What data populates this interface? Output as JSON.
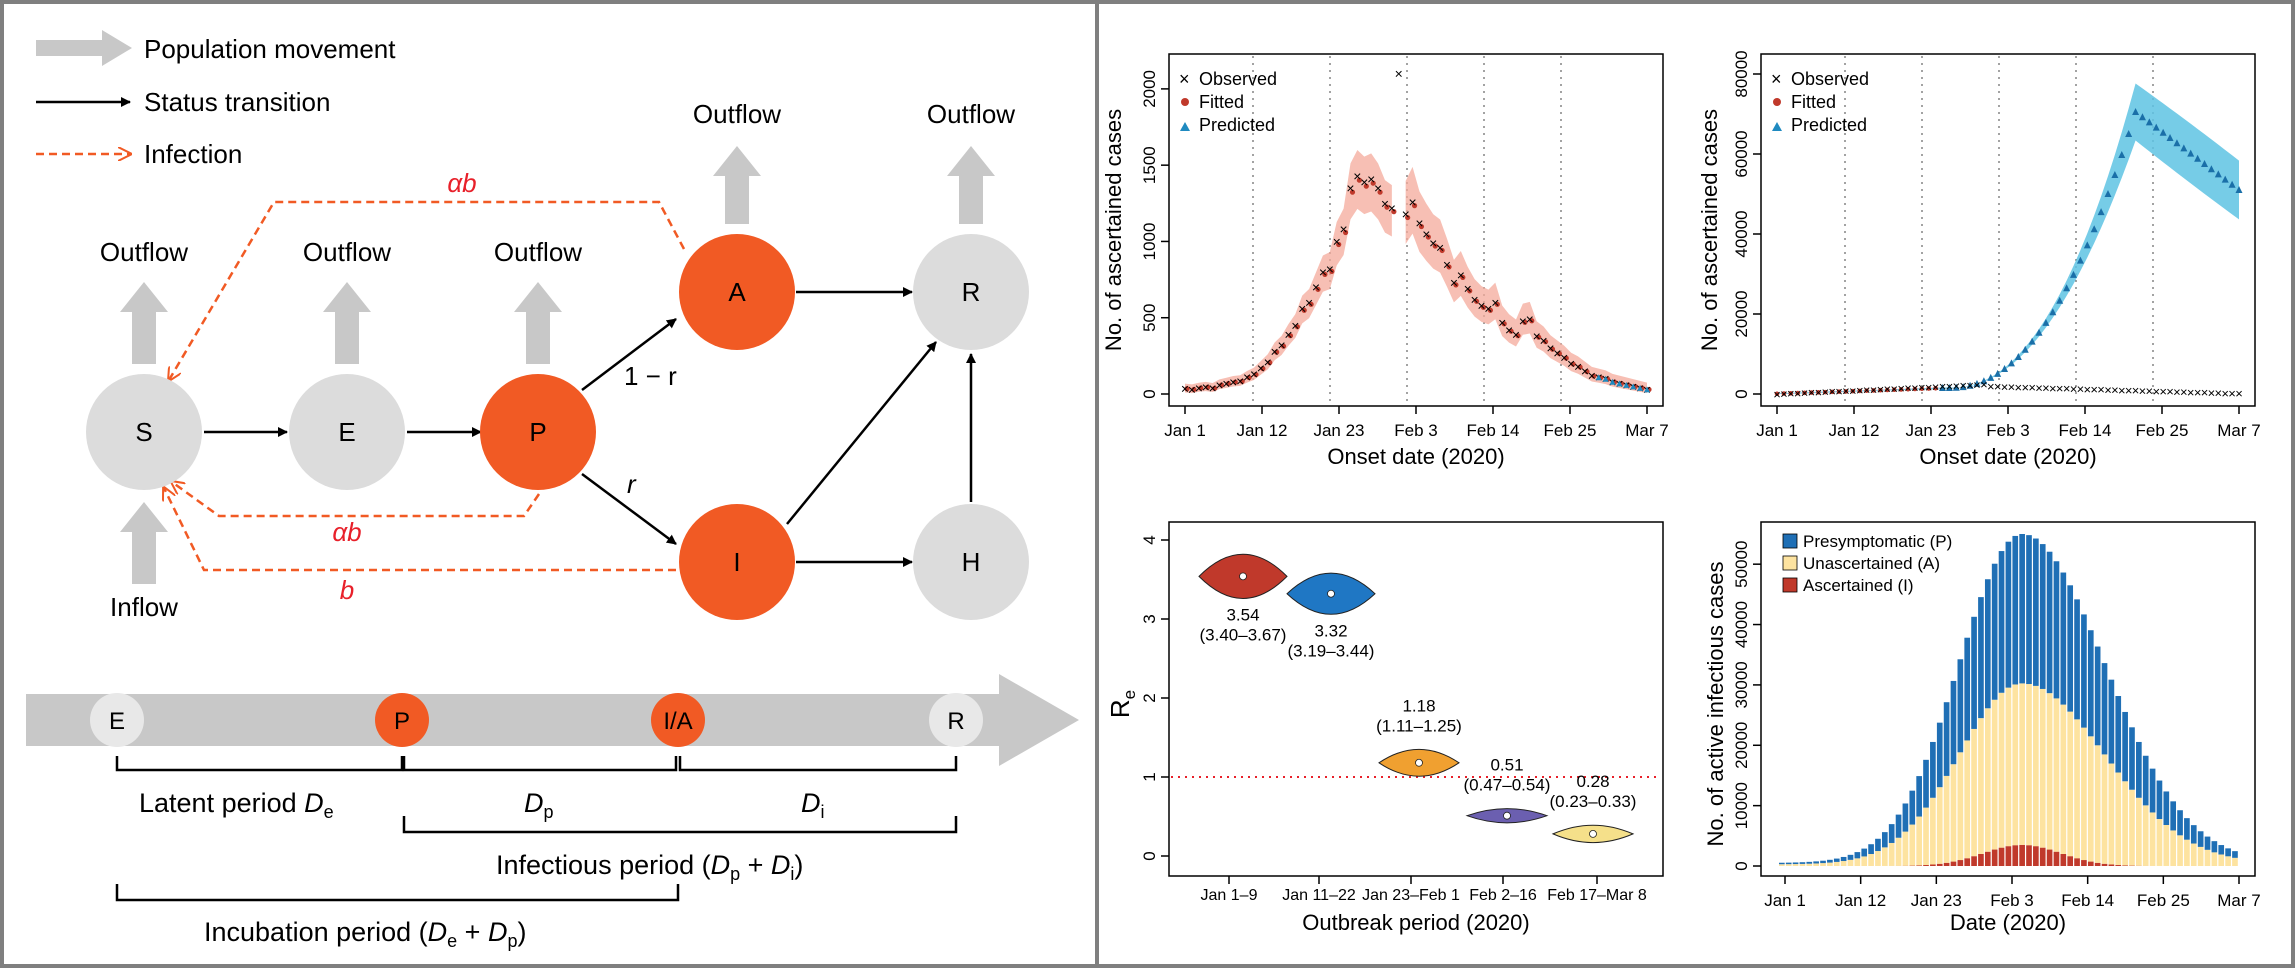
{
  "schematic": {
    "legend": {
      "population_movement": "Population movement",
      "status_transition": "Status transition",
      "infection": "Infection"
    },
    "nodes": {
      "S": "S",
      "E": "E",
      "P": "P",
      "A": "A",
      "I": "I",
      "R": "R",
      "H": "H"
    },
    "outflow": "Outflow",
    "inflow": "Inflow",
    "edges": {
      "one_minus_r": "1 − r",
      "r": "r",
      "alpha_b": "αb",
      "b": "b"
    },
    "timeline": {
      "stages": [
        "E",
        "P",
        "I/A",
        "R"
      ],
      "latent": {
        "text": "Latent period ",
        "sym": "D",
        "sub": "e"
      },
      "dp": {
        "sym": "D",
        "sub": "p"
      },
      "di": {
        "sym": "D",
        "sub": "i"
      },
      "infectious": {
        "pre": "Infectious period (",
        "s1": "D",
        "b1": "p",
        "mid": " + ",
        "s2": "D",
        "b2": "i",
        "post": ")"
      },
      "incubation": {
        "pre": "Incubation period (",
        "s1": "D",
        "b1": "e",
        "mid": " + ",
        "s2": "D",
        "b2": "p",
        "post": ")"
      }
    },
    "colors": {
      "node_gray": "#dcdcdc",
      "node_orange": "#f15a24",
      "arrow_gray": "#c8c8c8",
      "infection": "#f15a24"
    }
  },
  "charts": {
    "onset_left": {
      "type": "scatter",
      "ylabel": "No. of ascertained cases",
      "xlabel": "Onset date (2020)",
      "xticks": [
        "Jan 1",
        "Jan 12",
        "Jan 23",
        "Feb 3",
        "Feb 14",
        "Feb 25",
        "Mar 7"
      ],
      "yticks": [
        "0",
        "500",
        "1000",
        "1500",
        "2000"
      ],
      "ylim": [
        0,
        2150
      ],
      "legend": [
        "Observed",
        "Fitted",
        "Predicted"
      ],
      "observed": [
        35,
        30,
        40,
        45,
        38,
        60,
        70,
        80,
        85,
        110,
        130,
        170,
        210,
        280,
        320,
        390,
        450,
        560,
        600,
        700,
        800,
        820,
        1000,
        1080,
        1350,
        1430,
        1390,
        1410,
        1350,
        1250,
        1220,
        2100,
        1180,
        1260,
        1120,
        1050,
        990,
        960,
        850,
        730,
        780,
        690,
        620,
        580,
        560,
        600,
        470,
        420,
        390,
        480,
        490,
        380,
        350,
        300,
        270,
        240,
        200,
        180,
        150,
        120,
        110,
        100,
        80,
        70,
        60,
        50,
        40,
        30
      ]
    },
    "onset_right": {
      "type": "scatter",
      "ylabel": "No. of ascertained cases",
      "xlabel": "Onset date (2020)",
      "xticks": [
        "Jan 1",
        "Jan 12",
        "Jan 23",
        "Feb 3",
        "Feb 14",
        "Feb 25",
        "Mar 7"
      ],
      "yticks": [
        "0",
        "20000",
        "40000",
        "60000",
        "80000"
      ],
      "ylim": [
        0,
        82000
      ],
      "legend": [
        "Observed",
        "Fitted",
        "Predicted"
      ]
    },
    "re_violin": {
      "type": "violin",
      "ylabel": "R",
      "ylabel_sub": "e",
      "xlabel": "Outbreak period (2020)",
      "yticks": [
        "0",
        "1",
        "2",
        "3",
        "4"
      ],
      "ylim": [
        -0.2,
        4.2
      ],
      "categories": [
        "Jan 1–9",
        "Jan 11–22",
        "Jan 23–Feb 1",
        "Feb 2–16",
        "Feb 17–Mar 8"
      ],
      "values": [
        3.54,
        3.32,
        1.18,
        0.51,
        0.28
      ],
      "ci": [
        "(3.40–3.67)",
        "(3.19–3.44)",
        "(1.11–1.25)",
        "(0.47–0.54)",
        "(0.23–0.33)"
      ],
      "value_labels": [
        "3.54",
        "3.32",
        "1.18",
        "0.51",
        "0.28"
      ],
      "colors": [
        "#c0392b",
        "#1f77c4",
        "#f0a030",
        "#6b5fb0",
        "#f5e08a"
      ]
    },
    "active_bar": {
      "type": "bar",
      "ylabel": "No. of active infectious cases",
      "xlabel": "Date (2020)",
      "xticks": [
        "Jan 1",
        "Jan 12",
        "Jan 23",
        "Feb 3",
        "Feb 14",
        "Feb 25",
        "Mar 7"
      ],
      "yticks": [
        "0",
        "10000",
        "20000",
        "30000",
        "40000",
        "50000"
      ],
      "ylim": [
        0,
        55000
      ],
      "legend": [
        "Presymptomatic (P)",
        "Unascertained (A)",
        "Ascertained (I)"
      ],
      "colors": [
        "#1f6fb5",
        "#fde3a0",
        "#c0392b"
      ]
    }
  }
}
